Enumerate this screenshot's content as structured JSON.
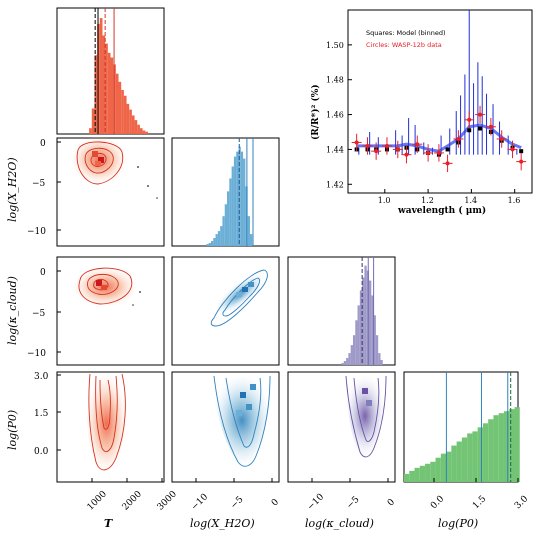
{
  "chart_data": [
    {
      "type": "histogram",
      "panel": "hist-T",
      "x_tick_labels": [
        "1000",
        "2000",
        "3000"
      ],
      "xlim": [
        0,
        3000
      ],
      "bins_start": 900,
      "bin_width": 75,
      "bin_heights": [
        0.05,
        0.22,
        0.68,
        0.95,
        1.0,
        0.85,
        0.78,
        0.7,
        0.66,
        0.6,
        0.52,
        0.45,
        0.38,
        0.33,
        0.26,
        0.21,
        0.16,
        0.12,
        0.08,
        0.05,
        0.03,
        0.02
      ],
      "lines": [
        {
          "x": 1070,
          "style": "dashed",
          "color": "#000000"
        },
        {
          "x": 1150,
          "style": "solid",
          "color": "#000000"
        },
        {
          "x": 1350,
          "style": "dashed",
          "color": "#d0362a"
        },
        {
          "x": 1600,
          "style": "solid",
          "color": "#d0362a"
        }
      ],
      "color": "#ef6548"
    },
    {
      "type": "histogram",
      "panel": "hist-XH2O",
      "x_tick_labels": [
        "−10",
        "−5",
        "0"
      ],
      "xlim": [
        -13,
        1
      ],
      "bins_start": -8.5,
      "bin_width": 0.3,
      "bin_heights": [
        0.02,
        0.03,
        0.05,
        0.08,
        0.12,
        0.15,
        0.2,
        0.3,
        0.42,
        0.55,
        0.68,
        0.8,
        0.9,
        0.95,
        1.0,
        0.95,
        0.88,
        0.6,
        0.3,
        0.12
      ],
      "lines": [
        {
          "x": -4.2,
          "style": "dashed",
          "color": "#1f5b9a"
        },
        {
          "x": -3.2,
          "style": "solid",
          "color": "#3182bd"
        },
        {
          "x": -2.4,
          "style": "solid",
          "color": "#3182bd"
        }
      ],
      "color": "#6baed6"
    },
    {
      "type": "histogram",
      "panel": "hist-kcloud",
      "x_tick_labels": [
        "−10",
        "−5",
        "0"
      ],
      "xlim": [
        -13,
        1
      ],
      "bins_start": -6,
      "bin_width": 0.3,
      "bin_heights": [
        0.02,
        0.04,
        0.07,
        0.12,
        0.2,
        0.3,
        0.45,
        0.6,
        0.75,
        0.88,
        1.0,
        0.95,
        0.85,
        0.7,
        0.5,
        0.3,
        0.12,
        0.05
      ],
      "lines": [
        {
          "x": -3.3,
          "style": "dashed",
          "color": "#3a2f70"
        },
        {
          "x": -2.5,
          "style": "solid",
          "color": "#756bb1"
        },
        {
          "x": -1.8,
          "style": "solid",
          "color": "#756bb1"
        }
      ],
      "color": "#9e9ac8"
    },
    {
      "type": "histogram",
      "panel": "hist-P0",
      "x_tick_labels": [
        "0.0",
        "1.5",
        "3.0"
      ],
      "xlim": [
        -0.9,
        3.0
      ],
      "bins_start": -0.9,
      "bin_width": 0.18,
      "bin_heights": [
        0.08,
        0.11,
        0.14,
        0.16,
        0.18,
        0.2,
        0.24,
        0.28,
        0.3,
        0.36,
        0.4,
        0.44,
        0.48,
        0.5,
        0.54,
        0.58,
        0.62,
        0.66,
        0.68,
        0.7,
        0.72,
        0.74
      ],
      "lines": [
        {
          "x": 0.55,
          "style": "solid",
          "color": "#3182bd"
        },
        {
          "x": 1.75,
          "style": "solid",
          "color": "#3182bd"
        },
        {
          "x": 2.65,
          "style": "solid",
          "color": "#3182bd"
        },
        {
          "x": 2.75,
          "style": "dashed",
          "color": "#1a6b3a"
        }
      ],
      "color": "#74c476"
    },
    {
      "type": "scatter",
      "panel": "spectrum-inset",
      "xlabel": "wavelength ( μm)",
      "ylabel": "(R/R*)² (%)",
      "xlim": [
        0.83,
        1.68
      ],
      "ylim": [
        1.415,
        1.52
      ],
      "x_ticks": [
        1.0,
        1.2,
        1.4,
        1.6
      ],
      "x_tick_labels": [
        "1.0",
        "1.2",
        "1.4",
        "1.6"
      ],
      "y_ticks": [
        1.42,
        1.44,
        1.46,
        1.48,
        1.5
      ],
      "y_tick_labels": [
        "1.42",
        "1.44",
        "1.46",
        "1.48",
        "1.50"
      ],
      "legend": [
        {
          "label": "Squares: Model (binned)",
          "color": "#000000"
        },
        {
          "label": "Circles: WASP-12b data",
          "color": "#e8202a"
        }
      ],
      "data_points": {
        "x": [
          0.87,
          0.92,
          0.96,
          1.01,
          1.06,
          1.1,
          1.15,
          1.2,
          1.25,
          1.29,
          1.34,
          1.39,
          1.44,
          1.49,
          1.54,
          1.59,
          1.63
        ],
        "y": [
          1.444,
          1.442,
          1.439,
          1.442,
          1.44,
          1.437,
          1.443,
          1.438,
          1.438,
          1.432,
          1.446,
          1.457,
          1.46,
          1.453,
          1.446,
          1.44,
          1.433
        ],
        "yerr": [
          0.005,
          0.005,
          0.005,
          0.005,
          0.005,
          0.005,
          0.005,
          0.005,
          0.005,
          0.005,
          0.005,
          0.005,
          0.005,
          0.005,
          0.005,
          0.005,
          0.005
        ]
      },
      "model_binned": {
        "x": [
          0.87,
          0.92,
          0.96,
          1.01,
          1.06,
          1.1,
          1.15,
          1.2,
          1.25,
          1.29,
          1.34,
          1.39,
          1.44,
          1.49,
          1.54,
          1.59,
          1.63
        ],
        "y": [
          1.44,
          1.44,
          1.44,
          1.44,
          1.44,
          1.441,
          1.44,
          1.438,
          1.437,
          1.44,
          1.444,
          1.451,
          1.452,
          1.45,
          1.445,
          1.441,
          1.439
        ]
      },
      "model_peaks": {
        "x": [
          0.88,
          0.93,
          0.97,
          1.05,
          1.08,
          1.11,
          1.14,
          1.18,
          1.22,
          1.26,
          1.3,
          1.33,
          1.35,
          1.37,
          1.39,
          1.41,
          1.43,
          1.45,
          1.47,
          1.5,
          1.53,
          1.57,
          1.61
        ],
        "y": [
          1.441,
          1.45,
          1.447,
          1.451,
          1.448,
          1.458,
          1.454,
          1.444,
          1.441,
          1.448,
          1.452,
          1.462,
          1.471,
          1.483,
          1.52,
          1.478,
          1.49,
          1.482,
          1.472,
          1.466,
          1.456,
          1.448,
          1.44
        ]
      }
    },
    {
      "type": "contour",
      "panel": "corner-2d",
      "x_axis_labels": [
        "T",
        "log(X_H2O)",
        "log(κ_cloud)",
        "log(P0)"
      ],
      "y_axis_labels": [
        "log(X_H2O)",
        "log(κ_cloud)",
        "log(P0)"
      ],
      "y_tick_labels_XH2O": [
        "0",
        "−5",
        "−10"
      ],
      "y_tick_labels_kcloud": [
        "0",
        "−5",
        "−10"
      ],
      "y_tick_labels_P0": [
        "3.0",
        "1.5",
        "0.0"
      ],
      "panels": [
        {
          "x": "T",
          "y": "log(X_H2O)",
          "center": [
            1150,
            -2.0
          ],
          "color": "#ef6548"
        },
        {
          "x": "T",
          "y": "log(κ_cloud)",
          "center": [
            1150,
            -1.8
          ],
          "color": "#ef6548"
        },
        {
          "x": "T",
          "y": "log(P0)",
          "center": [
            1300,
            1.6
          ],
          "color": "#ef6548"
        },
        {
          "x": "log(X_H2O)",
          "y": "log(κ_cloud)",
          "center": [
            -3.2,
            -2.5
          ],
          "color": "#3182bd"
        },
        {
          "x": "log(X_H2O)",
          "y": "log(P0)",
          "center": [
            -3.5,
            1.8
          ],
          "color": "#3182bd"
        },
        {
          "x": "log(κ_cloud)",
          "y": "log(P0)",
          "center": [
            -2.5,
            1.8
          ],
          "color": "#756bb1"
        }
      ]
    }
  ],
  "labels": {
    "x_T": "T",
    "x_XH2O": "log(X_H2O)",
    "x_kcloud": "log(κ_cloud)",
    "x_P0": "log(P0)",
    "y_XH2O": "log(X_H2O)",
    "y_kcloud": "log(κ_cloud)",
    "y_P0": "log(P0)"
  }
}
